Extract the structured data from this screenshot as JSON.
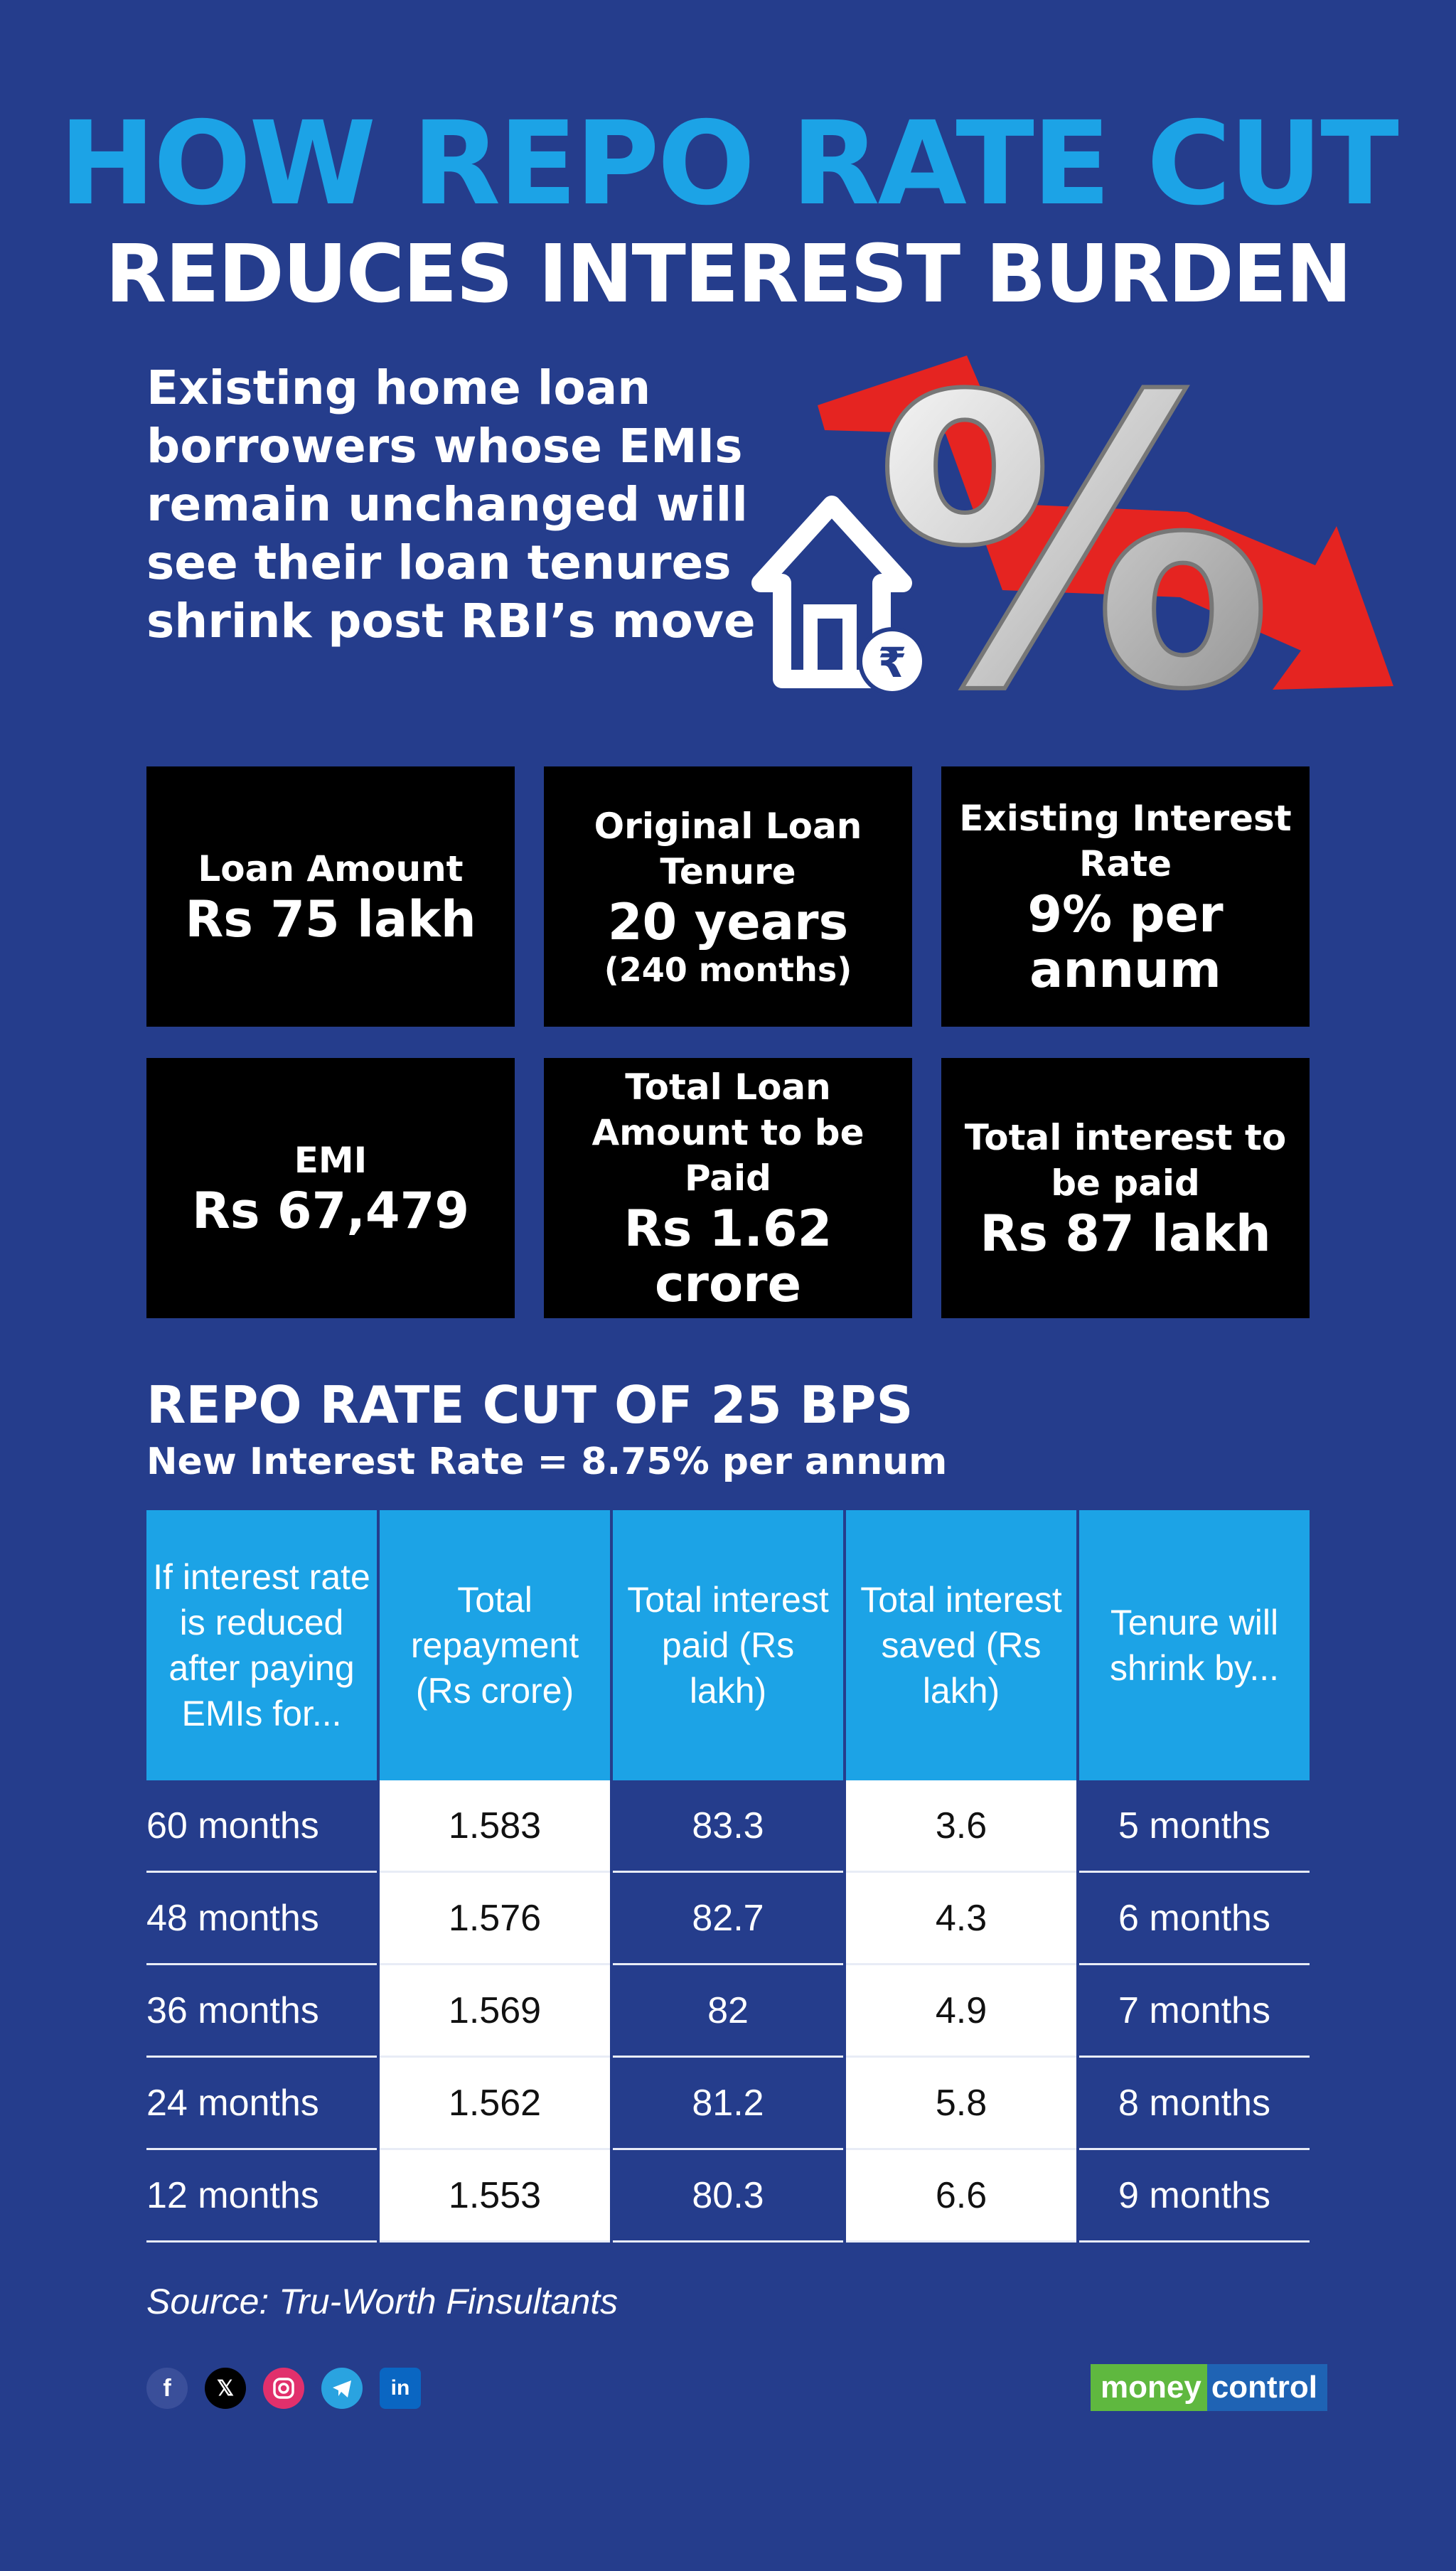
{
  "title": {
    "line1": "HOW REPO RATE CUT",
    "line2": "REDUCES INTEREST BURDEN"
  },
  "intro": "Existing home loan borrowers whose EMIs remain unchanged will see their loan tenures shrink post RBI’s move",
  "colors": {
    "background": "#253d8c",
    "accent": "#1ca3e6",
    "card": "#000000",
    "arrow": "#e52421"
  },
  "cards": [
    {
      "label": "Loan Amount",
      "value": "Rs 75 lakh",
      "sub": ""
    },
    {
      "label": "Original Loan Tenure",
      "value": "20 years",
      "sub": "(240 months)"
    },
    {
      "label": "Existing Interest Rate",
      "value": "9% per annum",
      "sub": ""
    },
    {
      "label": "EMI",
      "value": "Rs 67,479",
      "sub": ""
    },
    {
      "label": "Total Loan Amount to be Paid",
      "value": "Rs 1.62 crore",
      "sub": ""
    },
    {
      "label": "Total interest to be paid",
      "value": "Rs 87 lakh",
      "sub": ""
    }
  ],
  "repo": {
    "title": "REPO RATE CUT OF 25 BPS",
    "subtitle": "New Interest Rate = 8.75% per annum"
  },
  "table": {
    "headers": [
      "If interest rate is reduced after paying EMIs for...",
      "Total repayment (Rs crore)",
      "Total interest paid (Rs lakh)",
      "Total interest saved (Rs lakh)",
      "Tenure will shrink by..."
    ],
    "rows": [
      [
        "60 months",
        "1.583",
        "83.3",
        "3.6",
        "5 months"
      ],
      [
        "48 months",
        "1.576",
        "82.7",
        "4.3",
        "6 months"
      ],
      [
        "36 months",
        "1.569",
        "82",
        "4.9",
        "7 months"
      ],
      [
        "24 months",
        "1.562",
        "81.2",
        "5.8",
        "8 months"
      ],
      [
        "12 months",
        "1.553",
        "80.3",
        "6.6",
        "9 months"
      ]
    ]
  },
  "source": "Source: Tru-Worth Finsultants",
  "social_icons": [
    "facebook-icon",
    "x-icon",
    "instagram-icon",
    "telegram-icon",
    "linkedin-icon"
  ],
  "brand": {
    "part1": "money",
    "part2": "control"
  },
  "hero_glyphs": {
    "percent": "%",
    "rupee": "₹"
  }
}
